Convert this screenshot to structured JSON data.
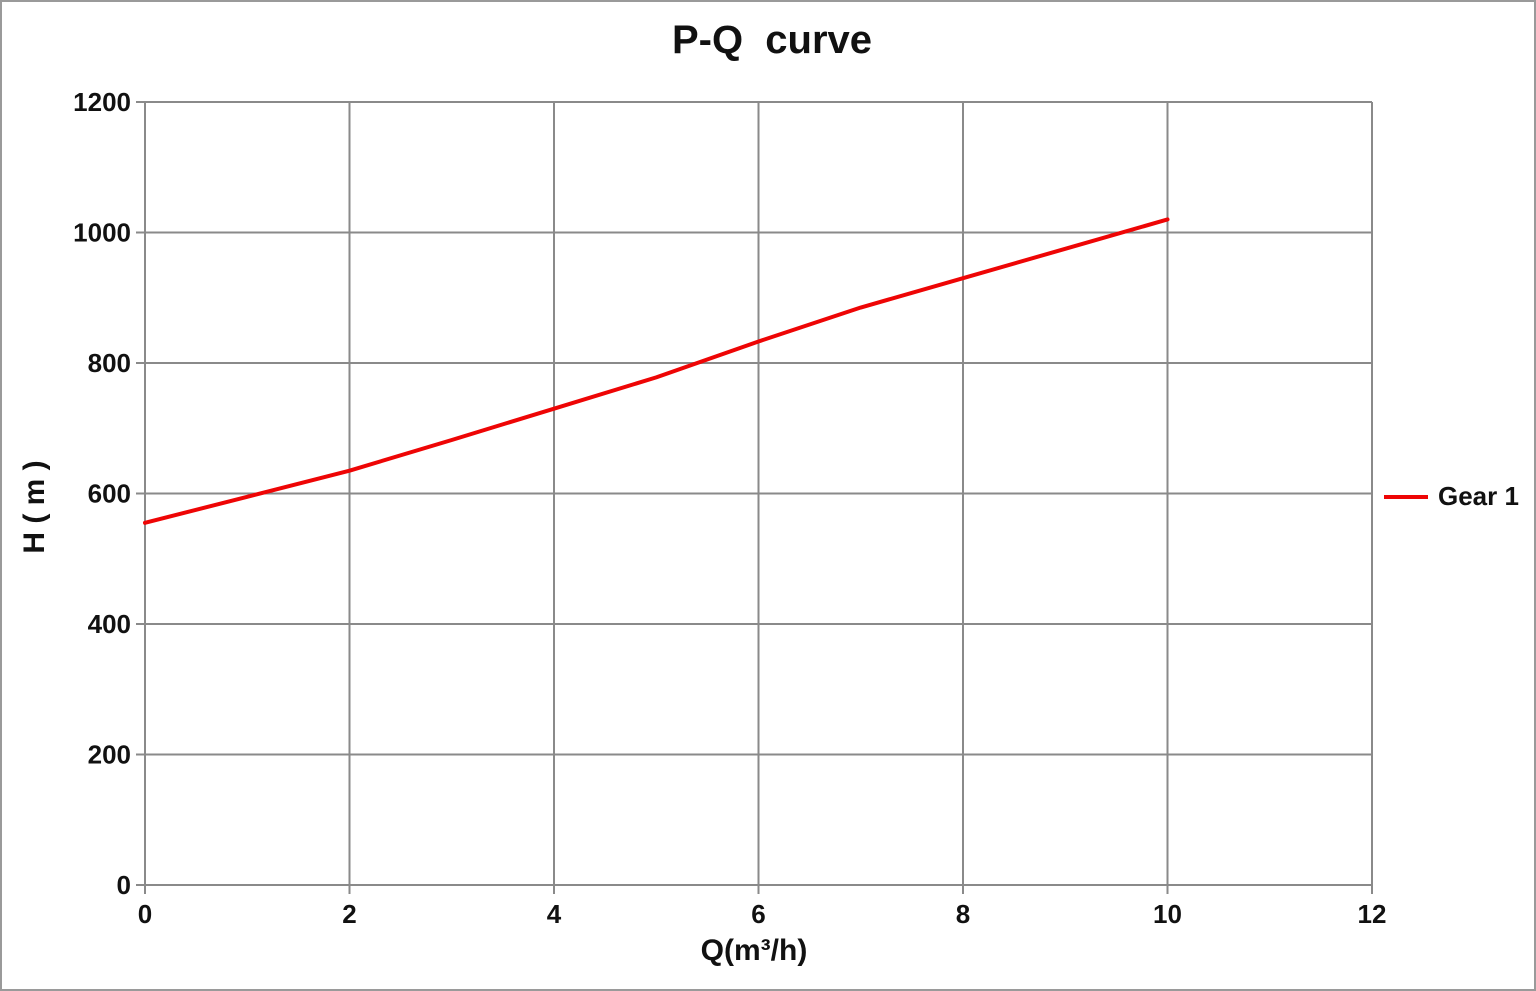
{
  "chart_data": {
    "type": "line",
    "title": "P-Q  curve",
    "xlabel": "Q(m³/h)",
    "ylabel": "H ( m )",
    "xlim": [
      0,
      12
    ],
    "ylim": [
      0,
      1200
    ],
    "x_ticks": [
      0,
      2,
      4,
      6,
      8,
      10,
      12
    ],
    "y_ticks": [
      0,
      200,
      400,
      600,
      800,
      1000,
      1200
    ],
    "grid": "on",
    "legend_position": "right",
    "series": [
      {
        "name": "Gear 1",
        "color": "#ee0505",
        "x": [
          0,
          1,
          2,
          3,
          4,
          5,
          6,
          7,
          8,
          9,
          10
        ],
        "y": [
          555,
          595,
          635,
          682,
          730,
          778,
          833,
          885,
          930,
          975,
          1020
        ]
      }
    ]
  },
  "colors": {
    "grid": "#8a8a8a",
    "text": "#111111",
    "background": "#ffffff",
    "border": "#9a9a9a",
    "series_red": "#ee0505"
  }
}
